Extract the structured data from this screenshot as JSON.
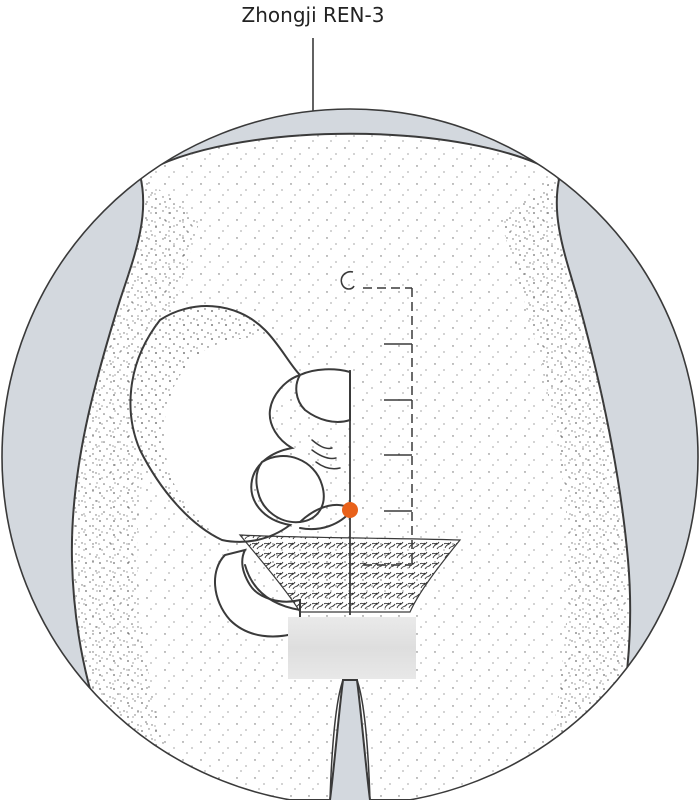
{
  "point_label": "Zhongji REN-3",
  "colors": {
    "background_shade": "#d3d8de",
    "body_fill": "#ffffff",
    "stipple": "#555555",
    "outline": "#3a3a3a",
    "point_marker": "#e8611a",
    "censor_box": "#e2e2e2"
  },
  "icons": [
    "acupuncture-point-marker"
  ]
}
